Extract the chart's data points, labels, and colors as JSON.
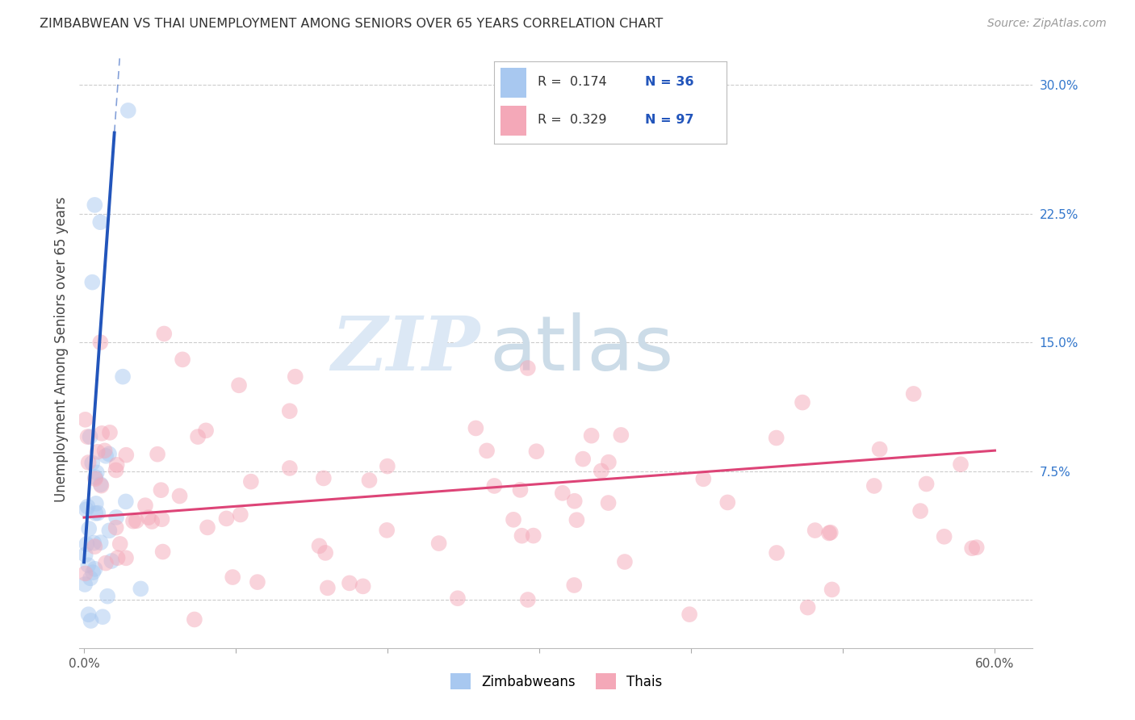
{
  "title": "ZIMBABWEAN VS THAI UNEMPLOYMENT AMONG SENIORS OVER 65 YEARS CORRELATION CHART",
  "source": "Source: ZipAtlas.com",
  "ylabel": "Unemployment Among Seniors over 65 years",
  "xlim_min": -0.003,
  "xlim_max": 0.625,
  "ylim_min": -0.028,
  "ylim_max": 0.32,
  "xtick_vals": [
    0.0,
    0.1,
    0.2,
    0.3,
    0.4,
    0.5,
    0.6
  ],
  "xtick_labels_show": [
    "0.0%",
    "",
    "",
    "",
    "",
    "",
    "60.0%"
  ],
  "ytick_vals": [
    0.0,
    0.075,
    0.15,
    0.225,
    0.3
  ],
  "ytick_labels": [
    "",
    "7.5%",
    "15.0%",
    "22.5%",
    "30.0%"
  ],
  "zim_color": "#A8C8F0",
  "thai_color": "#F4A8B8",
  "zim_line_color": "#2255BB",
  "thai_line_color": "#DD4477",
  "zim_slope": 12.5,
  "zim_intercept": 0.022,
  "thai_slope": 0.065,
  "thai_intercept": 0.048,
  "thai_trend_x0": 0.0,
  "thai_trend_x1": 0.6,
  "marker_size": 200,
  "marker_alpha": 0.5,
  "grid_color": "#CCCCCC",
  "tick_color_right": "#3377CC",
  "title_fontsize": 11.5,
  "source_fontsize": 10,
  "ylabel_fontsize": 12,
  "tick_fontsize": 11,
  "watermark_color1": "#DCE8F5",
  "watermark_color2": "#CCDCE8"
}
